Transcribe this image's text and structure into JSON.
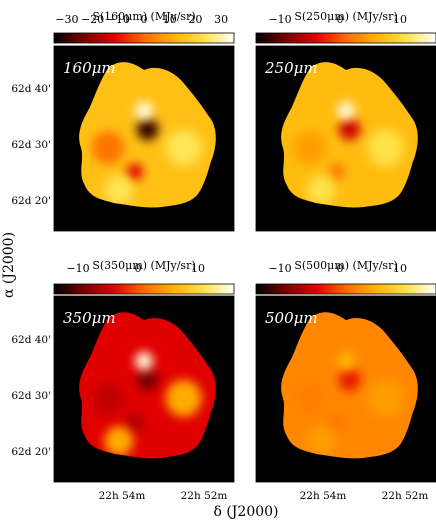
{
  "chart_data": {
    "type": "heatmap",
    "xlabel": "δ (J2000)",
    "ylabel": "α (J2000)",
    "x_ticks": [
      "22h 54m",
      "22h 52m"
    ],
    "y_ticks": [
      "62d 40'",
      "62d 30'",
      "62d 20'"
    ],
    "colormap": [
      "#000000",
      "#7a0000",
      "#e00000",
      "#ff6a00",
      "#ffb300",
      "#ffe24a",
      "#ffffff"
    ],
    "panels": [
      {
        "band": "160μm",
        "colorbar_label": "S(160μm) (MJy/sr)",
        "clim": [
          -35,
          35
        ],
        "colorbar_ticks": [
          "−30",
          "−20",
          "−10",
          "0",
          "10",
          "20",
          "30"
        ],
        "colorbar_tick_values": [
          -30,
          -20,
          -10,
          0,
          10,
          20,
          30
        ],
        "typical_value": 15,
        "hot_value": 33,
        "cold_value": -30,
        "secondary_cold_value": -12
      },
      {
        "band": "250μm",
        "colorbar_label": "S(250μm) (MJy/sr)",
        "clim": [
          -14,
          16
        ],
        "colorbar_ticks": [
          "−10",
          "0",
          "10"
        ],
        "colorbar_tick_values": [
          -10,
          0,
          10
        ],
        "typical_value": 7,
        "hot_value": 15,
        "cold_value": -5,
        "secondary_cold_value": 2
      },
      {
        "band": "350μm",
        "colorbar_label": "S(350μm) (MJy/sr)",
        "clim": [
          -14,
          16
        ],
        "colorbar_ticks": [
          "−10",
          "0",
          "10"
        ],
        "colorbar_tick_values": [
          -10,
          0,
          10
        ],
        "typical_value": -4,
        "hot_value": 15,
        "cold_value": -9,
        "secondary_cold_value": -7
      },
      {
        "band": "500μm",
        "colorbar_label": "S(500μm) (MJy/sr)",
        "clim": [
          -14,
          16
        ],
        "colorbar_ticks": [
          "−10",
          "0",
          "10"
        ],
        "colorbar_tick_values": [
          -10,
          0,
          10
        ],
        "typical_value": 3,
        "hot_value": 6,
        "cold_value": -3,
        "secondary_cold_value": 2
      }
    ]
  }
}
